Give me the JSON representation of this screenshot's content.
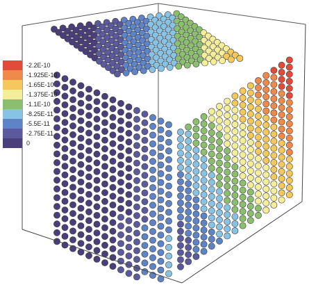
{
  "legend": {
    "colors": [
      "#e24a3a",
      "#f08a4a",
      "#f4c85c",
      "#f4ee9a",
      "#8bbf6f",
      "#88c2e4",
      "#5e83c6",
      "#5b5a9c",
      "#4a3f7a"
    ],
    "labels": [
      "-2.2E-10",
      "-1.925E-10",
      "-1.65E-10",
      "-1.375E-10",
      "-1.1E-10",
      "-8.25E-11",
      "-5.5E-11",
      "-2.75E-11",
      "0"
    ]
  }
}
